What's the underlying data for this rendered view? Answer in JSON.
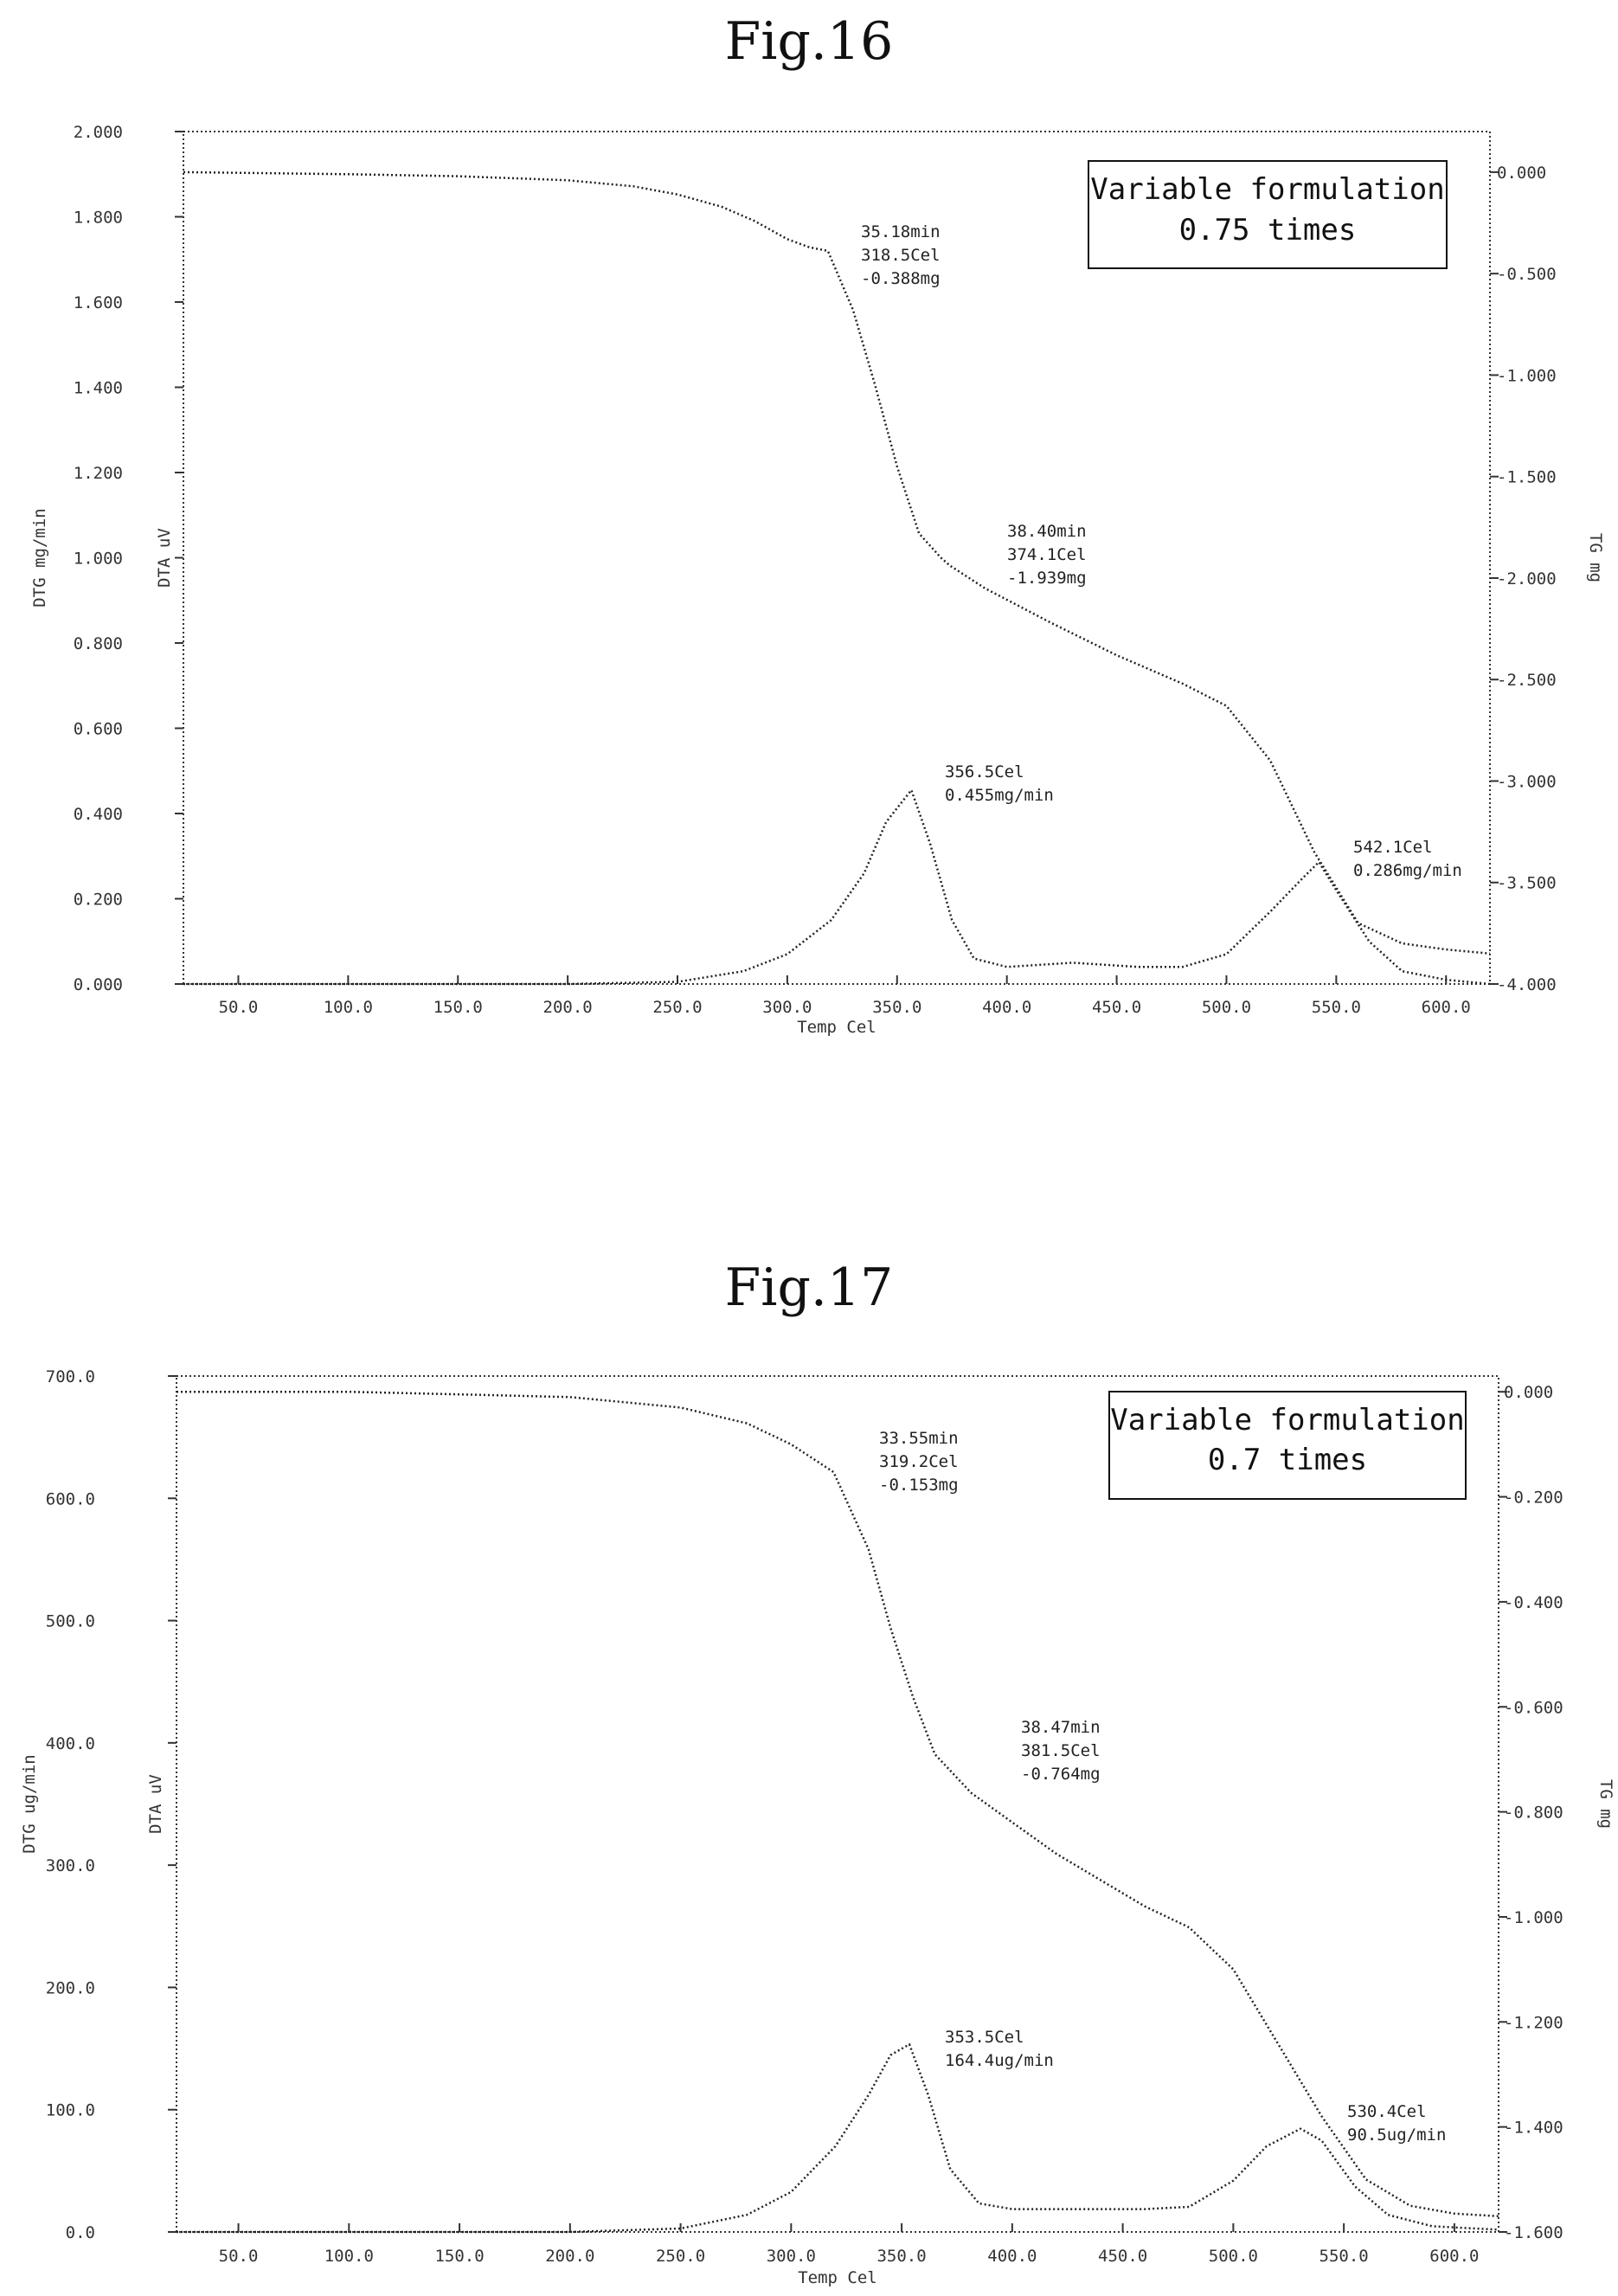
{
  "figures": [
    {
      "fig_label": "Fig.16",
      "legend_lines": [
        "Variable formulation",
        "0.75  times"
      ],
      "xlabel": "Temp Cel",
      "ylabel_left": "DTG mg/min",
      "ylabel_dta": "DTA uV",
      "ylabel_right": "TG mg",
      "left_ticks": [
        "0.000",
        "0.200",
        "0.400",
        "0.600",
        "0.800",
        "1.000",
        "1.200",
        "1.400",
        "1.600",
        "1.800",
        "2.000"
      ],
      "right_ticks": [
        "0.000",
        "-0.500",
        "-1.000",
        "-1.500",
        "-2.000",
        "-2.500",
        "-3.000",
        "-3.500",
        "-4.000"
      ],
      "x_ticks": [
        "50.0",
        "100.0",
        "150.0",
        "200.0",
        "250.0",
        "300.0",
        "350.0",
        "400.0",
        "450.0",
        "500.0",
        "550.0",
        "600.0"
      ],
      "annotations": [
        {
          "lines": [
            "35.18min",
            "318.5Cel",
            "-0.388mg"
          ]
        },
        {
          "lines": [
            "38.40min",
            "374.1Cel",
            "-1.939mg"
          ]
        },
        {
          "lines": [
            "356.5Cel",
            "0.455mg/min"
          ]
        },
        {
          "lines": [
            "542.1Cel",
            "0.286mg/min"
          ]
        }
      ]
    },
    {
      "fig_label": "Fig.17",
      "legend_lines": [
        "Variable formulation",
        "0.7  times"
      ],
      "xlabel": "Temp Cel",
      "ylabel_left": "DTG ug/min",
      "ylabel_dta": "DTA uV",
      "ylabel_right": "TG mg",
      "left_ticks": [
        "0.0",
        "100.0",
        "200.0",
        "300.0",
        "400.0",
        "500.0",
        "600.0",
        "700.0"
      ],
      "right_ticks": [
        "0.000",
        "-0.200",
        "-0.400",
        "-0.600",
        "-0.800",
        "-1.000",
        "-1.200",
        "-1.400",
        "-1.600"
      ],
      "x_ticks": [
        "50.0",
        "100.0",
        "150.0",
        "200.0",
        "250.0",
        "300.0",
        "350.0",
        "400.0",
        "450.0",
        "500.0",
        "550.0",
        "600.0"
      ],
      "annotations": [
        {
          "lines": [
            "33.55min",
            "319.2Cel",
            "-0.153mg"
          ]
        },
        {
          "lines": [
            "38.47min",
            "381.5Cel",
            "-0.764mg"
          ]
        },
        {
          "lines": [
            "353.5Cel",
            "164.4ug/min"
          ]
        },
        {
          "lines": [
            "530.4Cel",
            "90.5ug/min"
          ]
        }
      ]
    }
  ],
  "chart_data": [
    {
      "type": "line",
      "title": "Fig.16",
      "xlabel": "Temp Cel",
      "ylabel": "DTG mg/min",
      "y2label": "TG mg",
      "xlim": [
        25,
        620
      ],
      "ylim": [
        0,
        2.0
      ],
      "y2lim": [
        -4.0,
        0.2
      ],
      "grid": false,
      "legend": "top-right",
      "series": [
        {
          "axis": "right",
          "x": [
            25,
            100,
            150,
            200,
            230,
            250,
            270,
            285,
            300,
            310,
            318.5,
            330,
            340,
            350,
            360,
            370,
            374.1,
            390,
            420,
            450,
            480,
            500,
            520,
            540,
            560,
            580,
            600,
            620
          ],
          "values": [
            0.0,
            -0.01,
            -0.02,
            -0.04,
            -0.07,
            -0.11,
            -0.17,
            -0.24,
            -0.33,
            -0.37,
            -0.388,
            -0.68,
            -1.05,
            -1.45,
            -1.78,
            -1.9,
            -1.939,
            -2.05,
            -2.22,
            -2.38,
            -2.52,
            -2.63,
            -2.9,
            -3.35,
            -3.7,
            -3.8,
            -3.83,
            -3.85
          ]
        },
        {
          "axis": "left",
          "x": [
            25,
            200,
            250,
            280,
            300,
            320,
            335,
            345,
            356.5,
            365,
            375,
            385,
            400,
            430,
            460,
            480,
            500,
            520,
            535,
            542.1,
            550,
            565,
            580,
            600,
            620
          ],
          "values": [
            0.0,
            0.0,
            0.005,
            0.03,
            0.07,
            0.15,
            0.26,
            0.38,
            0.455,
            0.33,
            0.15,
            0.06,
            0.04,
            0.05,
            0.04,
            0.04,
            0.07,
            0.17,
            0.25,
            0.286,
            0.22,
            0.1,
            0.03,
            0.01,
            0.0
          ]
        }
      ],
      "annotations": [
        {
          "x": 318.5,
          "text": "35.18min 318.5Cel -0.388mg"
        },
        {
          "x": 374.1,
          "text": "38.40min 374.1Cel -1.939mg"
        },
        {
          "x": 356.5,
          "text": "356.5Cel 0.455mg/min"
        },
        {
          "x": 542.1,
          "text": "542.1Cel 0.286mg/min"
        }
      ]
    },
    {
      "type": "line",
      "title": "Fig.17",
      "xlabel": "Temp Cel",
      "ylabel": "DTG ug/min",
      "y2label": "TG mg",
      "xlim": [
        22,
        620
      ],
      "ylim": [
        0,
        750
      ],
      "y2lim": [
        -1.6,
        0.03
      ],
      "grid": false,
      "legend": "top-right",
      "series": [
        {
          "axis": "right",
          "x": [
            22,
            100,
            150,
            200,
            250,
            280,
            300,
            319.2,
            335,
            345,
            355,
            365,
            381.5,
            400,
            420,
            440,
            460,
            480,
            500,
            520,
            540,
            560,
            580,
            600,
            620
          ],
          "values": [
            0.0,
            0.0,
            -0.005,
            -0.01,
            -0.03,
            -0.06,
            -0.1,
            -0.153,
            -0.3,
            -0.45,
            -0.58,
            -0.69,
            -0.764,
            -0.82,
            -0.88,
            -0.93,
            -0.98,
            -1.02,
            -1.1,
            -1.24,
            -1.38,
            -1.5,
            -1.55,
            -1.565,
            -1.57
          ]
        },
        {
          "axis": "left",
          "x": [
            22,
            200,
            250,
            280,
            300,
            320,
            335,
            345,
            353.5,
            362,
            372,
            385,
            400,
            430,
            460,
            480,
            500,
            515,
            530.4,
            540,
            555,
            570,
            590,
            620
          ],
          "values": [
            0.0,
            0.0,
            3,
            15,
            35,
            75,
            120,
            155,
            164.4,
            120,
            55,
            25,
            20,
            20,
            20,
            22,
            45,
            75,
            90.5,
            80,
            40,
            15,
            5,
            2
          ]
        }
      ],
      "annotations": [
        {
          "x": 319.2,
          "text": "33.55min 319.2Cel -0.153mg"
        },
        {
          "x": 381.5,
          "text": "38.47min 381.5Cel -0.764mg"
        },
        {
          "x": 353.5,
          "text": "353.5Cel 164.4ug/min"
        },
        {
          "x": 530.4,
          "text": "530.4Cel 90.5ug/min"
        }
      ]
    }
  ]
}
